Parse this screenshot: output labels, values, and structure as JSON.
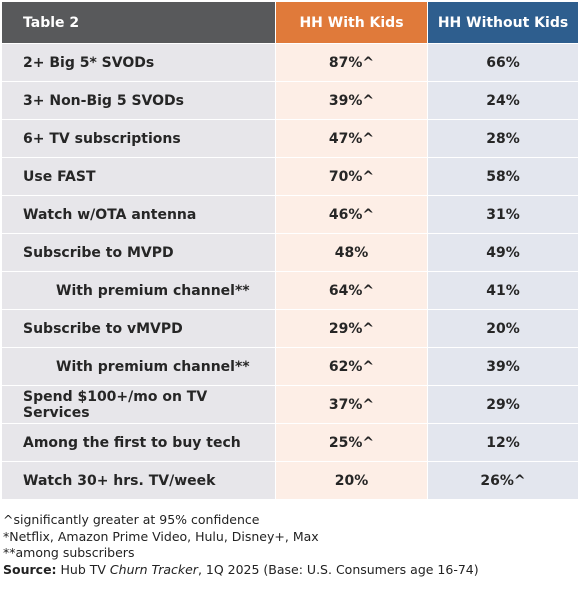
{
  "table": {
    "header": {
      "label": "Table 2",
      "col_kids": "HH With Kids",
      "col_no_kids": "HH Without Kids"
    },
    "rows": [
      {
        "label": "2+ Big 5* SVODs",
        "kids": "87%^",
        "no_kids": "66%"
      },
      {
        "label": "3+ Non-Big 5 SVODs",
        "kids": "39%^",
        "no_kids": "24%"
      },
      {
        "label": "6+ TV subscriptions",
        "kids": "47%^",
        "no_kids": "28%"
      },
      {
        "label": "Use FAST",
        "kids": "70%^",
        "no_kids": "58%"
      },
      {
        "label": "Watch w/OTA antenna",
        "kids": "46%^",
        "no_kids": "31%"
      },
      {
        "label": "Subscribe to MVPD",
        "kids": "48%",
        "no_kids": "49%"
      },
      {
        "label": "With premium channel**",
        "kids": "64%^",
        "no_kids": "41%"
      },
      {
        "label": "Subscribe to vMVPD",
        "kids": "29%^",
        "no_kids": "20%"
      },
      {
        "label": "With premium channel**",
        "kids": "62%^",
        "no_kids": "39%"
      },
      {
        "label": "Spend $100+/mo on TV Services",
        "kids": "37%^",
        "no_kids": "29%"
      },
      {
        "label": "Among the first to buy tech",
        "kids": "25%^",
        "no_kids": "12%"
      },
      {
        "label": "Watch 30+ hrs. TV/week",
        "kids": "20%",
        "no_kids": "26%^"
      }
    ]
  },
  "notes": {
    "line1": "^significantly greater at 95% confidence",
    "line2": "*Netflix, Amazon Prime Video, Hulu, Disney+, Max",
    "line3": "**among subscribers",
    "source_label": "Source:",
    "source_pre": " Hub TV ",
    "source_italic": "Churn Tracker",
    "source_post": ", 1Q 2025 (Base: U.S. Consumers age 16-74)"
  },
  "colors": {
    "header_label_bg": "#58595b",
    "header_kids_bg": "#e07a3a",
    "header_no_kids_bg": "#2e5e8e",
    "label_cell_bg": "#e7e6ea",
    "kids_cell_bg": "#fdeee6",
    "no_kids_cell_bg": "#e3e6ee"
  }
}
